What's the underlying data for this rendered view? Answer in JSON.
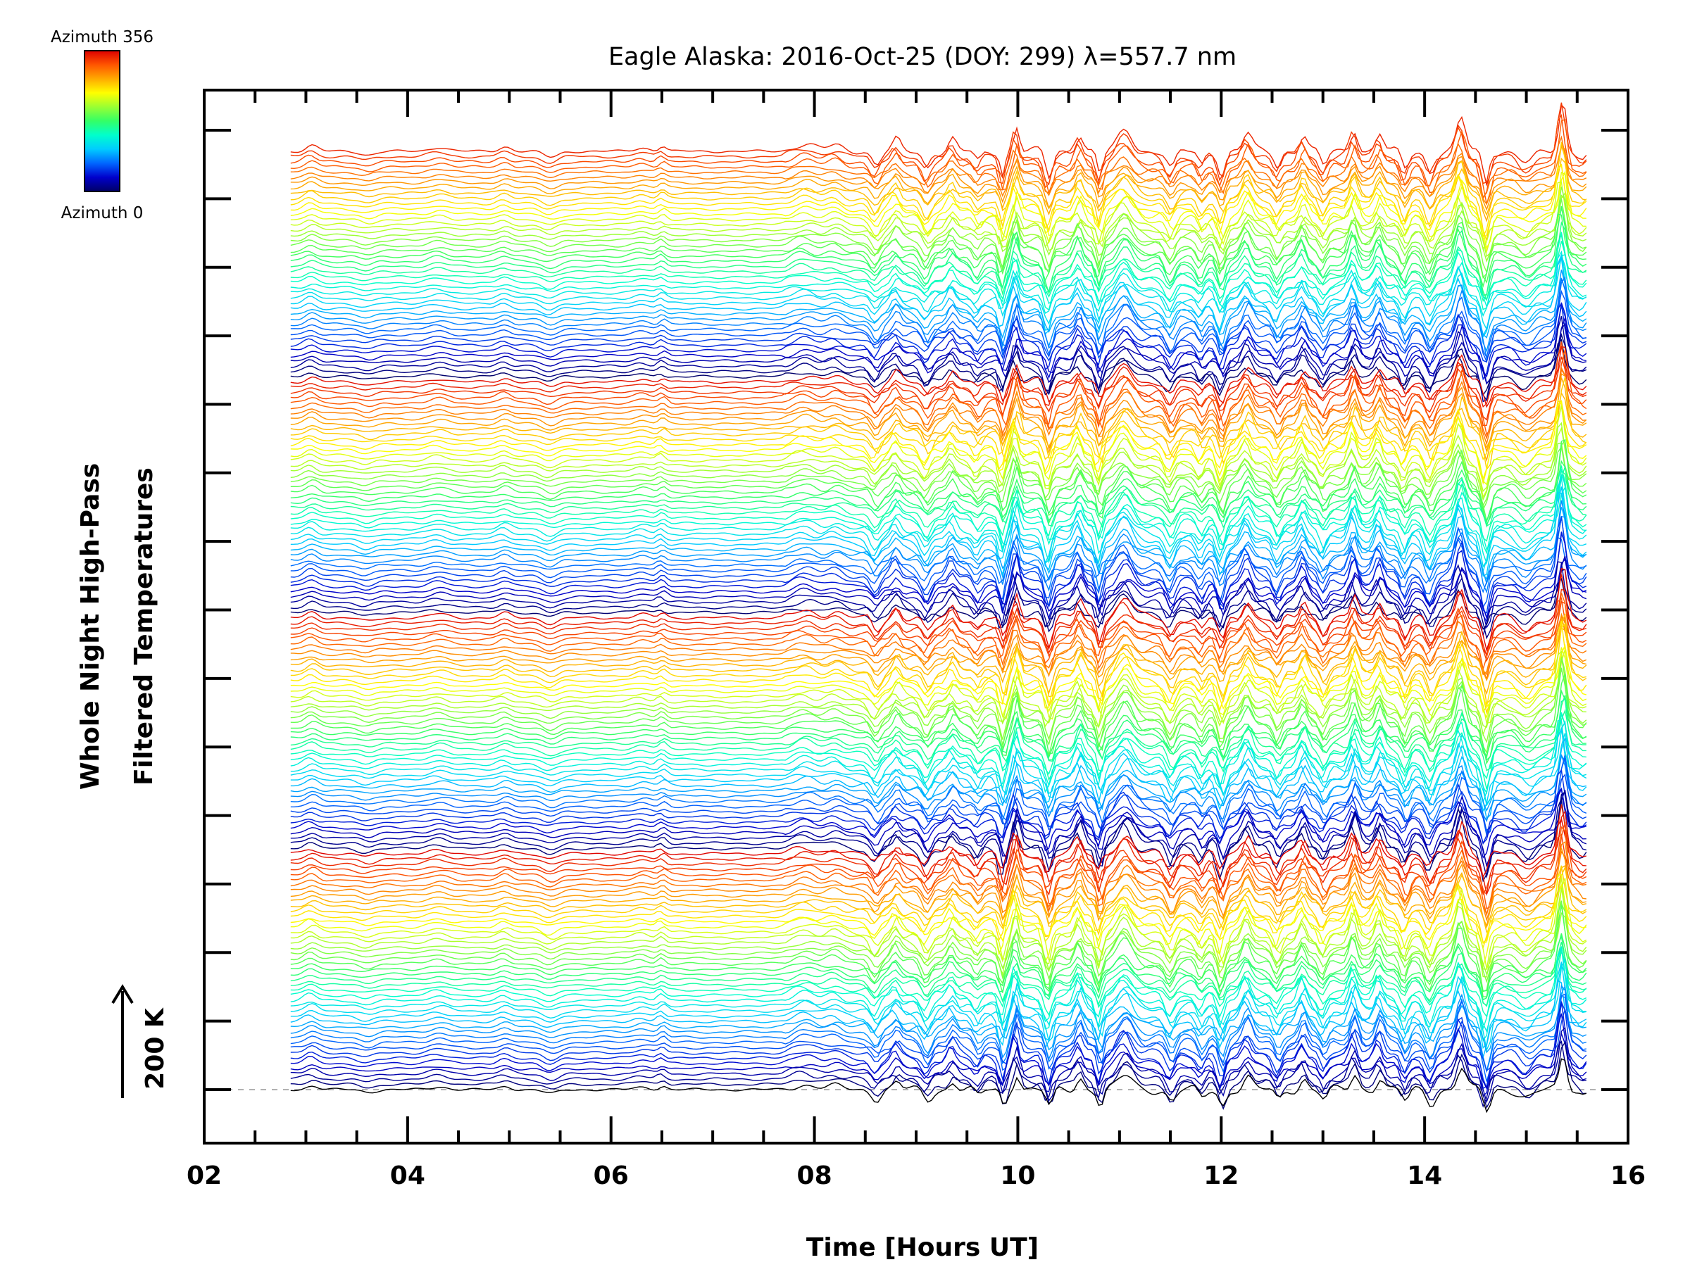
{
  "chart_data": {
    "type": "line",
    "title": "Eagle Alaska: 2016-Oct-25 (DOY: 299) λ=557.7 nm",
    "xlabel": "Time [Hours UT]",
    "ylabel_lines": [
      "Whole Night High-Pass",
      "Filtered Temperatures"
    ],
    "scale_label": "200 K",
    "colorbar": {
      "max_label": "Azimuth 356",
      "min_label": "Azimuth 0",
      "colors": [
        "#000066",
        "#0000cc",
        "#0066ff",
        "#00ccff",
        "#00ffcc",
        "#33ff66",
        "#99ff33",
        "#ffff00",
        "#ffaa00",
        "#ff5500",
        "#dd0000"
      ]
    },
    "xlim": [
      2,
      16
    ],
    "x_tick_labels": [
      "02",
      "04",
      "06",
      "08",
      "10",
      "12",
      "14",
      "16"
    ],
    "y_major_ticks": 15,
    "grid": false,
    "series_description": "Stacked high-pass filtered temperature traces vs. time, one trace per azimuth (0-356°), each vertically offset; data span approx. 02.85-15.6 h UT with quiet period before ~07.8 h and strong oscillations after ~08.5 h (peaks near 09.9, 11.0, 13.3, 14.3, 15.35 h).",
    "trace_count": 180,
    "x_start": 2.85,
    "x_end": 15.6
  }
}
